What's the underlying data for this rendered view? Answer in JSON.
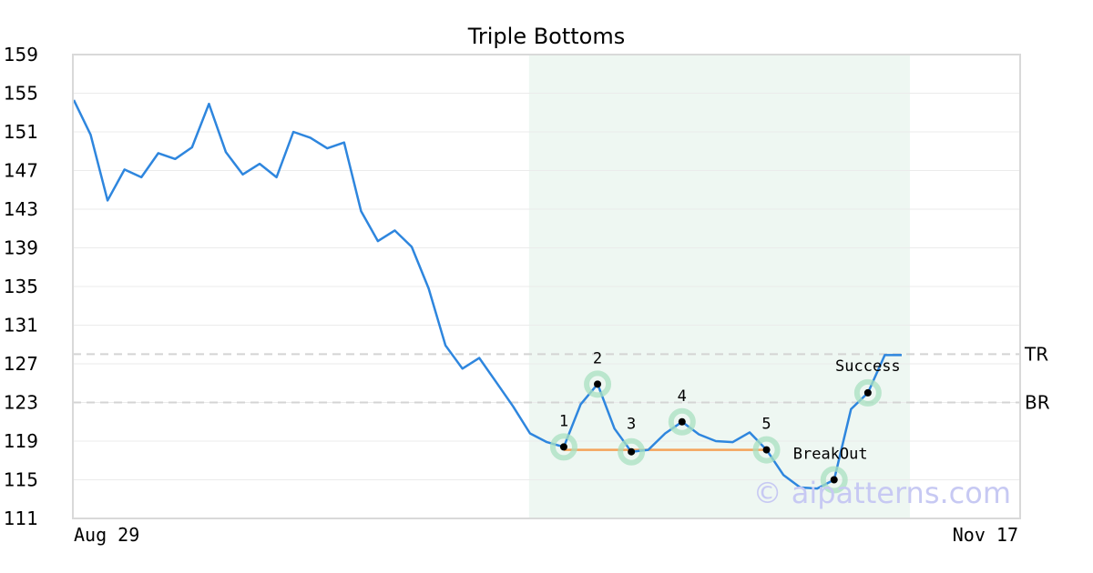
{
  "chart_data": {
    "type": "line",
    "title": "Triple Bottoms",
    "watermark": "© aipatterns.com",
    "x_tick_labels": [
      "Aug 29",
      "Nov 17"
    ],
    "ylim": [
      111,
      159
    ],
    "y_ticks": [
      111,
      115,
      119,
      123,
      127,
      131,
      135,
      139,
      143,
      147,
      151,
      155,
      159
    ],
    "grid": true,
    "series": [
      {
        "color": "#2e86de",
        "values": [
          154.3,
          150.7,
          143.9,
          147.1,
          146.3,
          148.8,
          148.2,
          149.4,
          153.9,
          148.9,
          146.6,
          147.7,
          146.3,
          151.0,
          150.4,
          149.3,
          149.9,
          142.8,
          139.7,
          140.8,
          139.1,
          134.8,
          128.9,
          126.5,
          127.6,
          125.1,
          122.6,
          119.8,
          118.9,
          118.4,
          122.8,
          124.9,
          120.3,
          117.9,
          118.1,
          119.8,
          121.0,
          119.7,
          119.0,
          118.9,
          119.9,
          118.1,
          115.5,
          114.2,
          114.1,
          115.0,
          122.3,
          124.0,
          127.9,
          127.9
        ]
      }
    ],
    "levels": [
      {
        "label": "TR",
        "value": 128.0
      },
      {
        "label": "BR",
        "value": 123.0
      }
    ],
    "pattern_region": {
      "start_index": 27,
      "end_index": 49
    },
    "pattern_line": {
      "value": 118.1,
      "from_index": 29,
      "to_index": 41,
      "color": "#f4a35a"
    },
    "markers": [
      {
        "label": "1",
        "index": 29,
        "value": 118.4
      },
      {
        "label": "2",
        "index": 31,
        "value": 124.9
      },
      {
        "label": "3",
        "index": 33,
        "value": 117.9
      },
      {
        "label": "4",
        "index": 36,
        "value": 121.0
      },
      {
        "label": "5",
        "index": 41,
        "value": 118.1
      },
      {
        "label": "BreakOut",
        "index": 45,
        "value": 115.0
      },
      {
        "label": "Success",
        "index": 47,
        "value": 124.0
      }
    ]
  }
}
